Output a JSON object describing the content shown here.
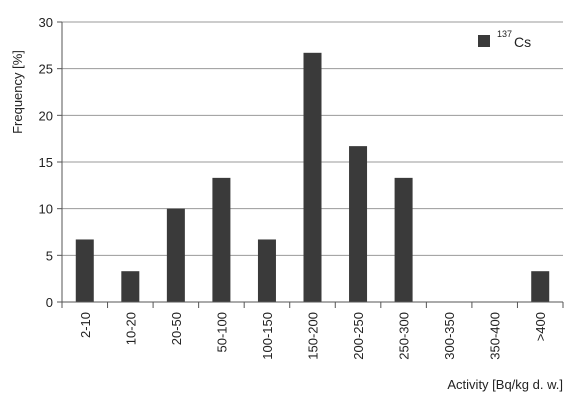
{
  "chart_data": {
    "type": "bar",
    "categories": [
      "2-10",
      "10-20",
      "20-50",
      "50-100",
      "100-150",
      "150-200",
      "200-250",
      "250-300",
      "300-350",
      "350-400",
      ">400"
    ],
    "series": [
      {
        "name": "137Cs",
        "values": [
          6.7,
          3.3,
          10.0,
          13.3,
          6.7,
          26.7,
          16.7,
          13.3,
          0,
          0,
          3.3
        ]
      }
    ],
    "xlabel": "Activity [Bq/kg d. w.]",
    "ylabel": "Frequency [%]",
    "ylim": [
      0,
      30
    ],
    "yticks": [
      "0",
      "5",
      "10",
      "15",
      "20",
      "25",
      "30"
    ],
    "grid": true,
    "legend": {
      "position": "top-right",
      "label_superscript": "137",
      "label_main": "Cs"
    },
    "colors": {
      "bar": "#3a3a3a",
      "grid": "#9a9a9a",
      "axis": "#555555"
    }
  }
}
